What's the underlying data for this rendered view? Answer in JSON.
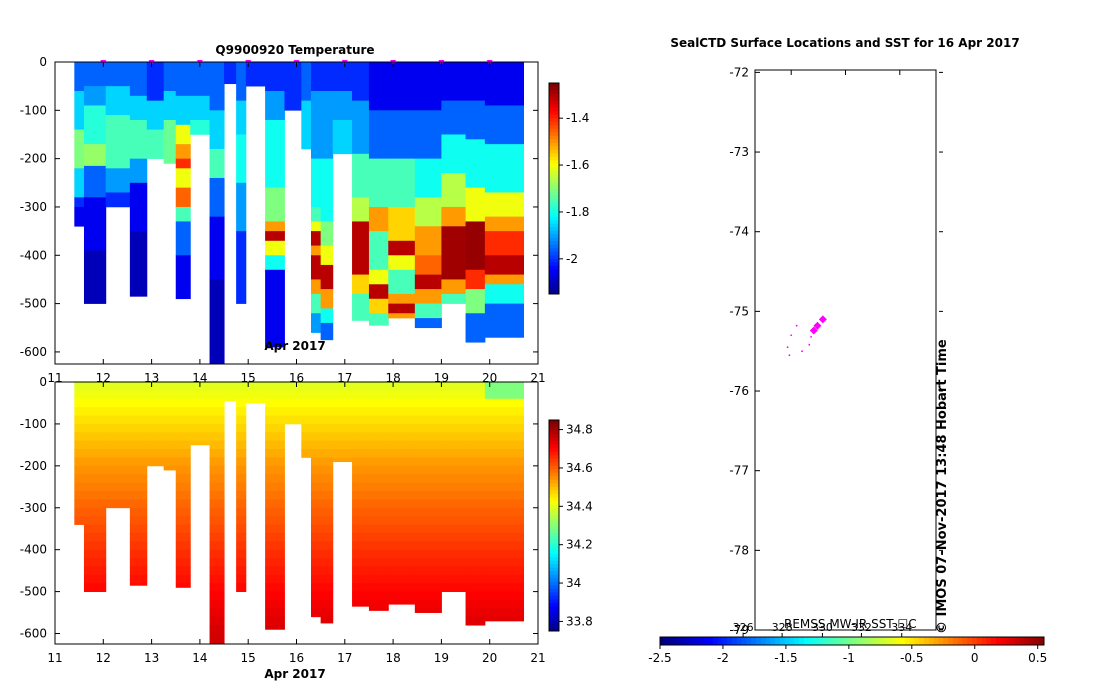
{
  "chart_data": [
    {
      "type": "heatmap",
      "title": "Q9900920  Temperature",
      "xlabel": "Apr 2017",
      "ylabel": "",
      "xlim": [
        11,
        21
      ],
      "ylim": [
        -625,
        0
      ],
      "xticks": [
        "11",
        "12",
        "13",
        "14",
        "15",
        "16",
        "17",
        "18",
        "19",
        "20",
        "21"
      ],
      "yticks": [
        "0",
        "-100",
        "-200",
        "-300",
        "-400",
        "-500",
        "-600"
      ],
      "colorbar": {
        "min": -2.15,
        "max": -1.25,
        "ticks": [
          "-1.4",
          "-1.6",
          "-1.8",
          "-2"
        ],
        "tick_values": [
          -1.4,
          -1.6,
          -1.8,
          -2.0
        ]
      },
      "markers_x": [
        12.0,
        13.0,
        14.0,
        15.0,
        16.0,
        17.0,
        18.0,
        19.0,
        20.0
      ],
      "profiles": [
        {
          "x0": 11.4,
          "x1": 11.6,
          "bottom": -340,
          "layers": [
            [
              0,
              -1.95
            ],
            [
              -60,
              -1.85
            ],
            [
              -140,
              -1.7
            ],
            [
              -220,
              -1.85
            ],
            [
              -280,
              -2.0
            ],
            [
              -300,
              -2.05
            ]
          ]
        },
        {
          "x0": 11.6,
          "x1": 12.05,
          "bottom": -500,
          "layers": [
            [
              0,
              -1.95
            ],
            [
              -50,
              -1.9
            ],
            [
              -90,
              -1.78
            ],
            [
              -170,
              -1.68
            ],
            [
              -215,
              -1.95
            ],
            [
              -280,
              -2.05
            ],
            [
              -390,
              -2.1
            ]
          ]
        },
        {
          "x0": 12.05,
          "x1": 12.55,
          "bottom": -300,
          "layers": [
            [
              0,
              -1.95
            ],
            [
              -50,
              -1.85
            ],
            [
              -110,
              -1.75
            ],
            [
              -220,
              -1.9
            ],
            [
              -270,
              -2.0
            ]
          ]
        },
        {
          "x0": 12.55,
          "x1": 12.9,
          "bottom": -485,
          "layers": [
            [
              0,
              -1.95
            ],
            [
              -70,
              -1.85
            ],
            [
              -120,
              -1.75
            ],
            [
              -200,
              -1.9
            ],
            [
              -250,
              -2.05
            ],
            [
              -350,
              -2.1
            ]
          ]
        },
        {
          "x0": 12.9,
          "x1": 13.25,
          "bottom": -200,
          "layers": [
            [
              0,
              -2.0
            ],
            [
              -80,
              -1.85
            ],
            [
              -140,
              -1.75
            ]
          ]
        },
        {
          "x0": 13.25,
          "x1": 13.5,
          "bottom": -210,
          "layers": [
            [
              0,
              -1.95
            ],
            [
              -60,
              -1.85
            ],
            [
              -120,
              -1.72
            ]
          ]
        },
        {
          "x0": 13.5,
          "x1": 13.8,
          "bottom": -490,
          "layers": [
            [
              0,
              -1.95
            ],
            [
              -70,
              -1.85
            ],
            [
              -130,
              -1.6
            ],
            [
              -170,
              -1.5
            ],
            [
              -200,
              -1.4
            ],
            [
              -220,
              -1.6
            ],
            [
              -260,
              -1.45
            ],
            [
              -300,
              -1.75
            ],
            [
              -330,
              -1.95
            ],
            [
              -400,
              -2.05
            ]
          ]
        },
        {
          "x0": 13.8,
          "x1": 14.2,
          "bottom": -150,
          "layers": [
            [
              0,
              -1.95
            ],
            [
              -70,
              -1.85
            ],
            [
              -120,
              -1.78
            ]
          ]
        },
        {
          "x0": 14.2,
          "x1": 14.5,
          "bottom": -630,
          "layers": [
            [
              0,
              -1.95
            ],
            [
              -100,
              -1.85
            ],
            [
              -180,
              -1.75
            ],
            [
              -240,
              -1.95
            ],
            [
              -320,
              -2.05
            ],
            [
              -450,
              -2.1
            ]
          ]
        },
        {
          "x0": 14.5,
          "x1": 14.75,
          "bottom": -45,
          "layers": [
            [
              0,
              -2.0
            ]
          ]
        },
        {
          "x0": 14.75,
          "x1": 14.95,
          "bottom": -500,
          "layers": [
            [
              0,
              -1.95
            ],
            [
              -80,
              -1.85
            ],
            [
              -150,
              -1.8
            ],
            [
              -250,
              -1.9
            ],
            [
              -350,
              -2.0
            ]
          ]
        },
        {
          "x0": 14.95,
          "x1": 15.35,
          "bottom": -50,
          "layers": [
            [
              0,
              -2.0
            ]
          ]
        },
        {
          "x0": 15.35,
          "x1": 15.75,
          "bottom": -590,
          "layers": [
            [
              0,
              -2.0
            ],
            [
              -60,
              -1.9
            ],
            [
              -120,
              -1.8
            ],
            [
              -260,
              -1.7
            ],
            [
              -330,
              -1.5
            ],
            [
              -350,
              -1.3
            ],
            [
              -370,
              -1.6
            ],
            [
              -400,
              -1.8
            ],
            [
              -430,
              -2.05
            ]
          ]
        },
        {
          "x0": 15.75,
          "x1": 16.1,
          "bottom": -100,
          "layers": [
            [
              0,
              -2.0
            ]
          ]
        },
        {
          "x0": 16.1,
          "x1": 16.3,
          "bottom": -180,
          "layers": [
            [
              0,
              -1.95
            ],
            [
              -80,
              -1.85
            ]
          ]
        },
        {
          "x0": 16.3,
          "x1": 16.5,
          "bottom": -560,
          "layers": [
            [
              0,
              -2.0
            ],
            [
              -60,
              -1.9
            ],
            [
              -200,
              -1.8
            ],
            [
              -300,
              -1.75
            ],
            [
              -330,
              -1.6
            ],
            [
              -350,
              -1.3
            ],
            [
              -380,
              -1.5
            ],
            [
              -400,
              -1.3
            ],
            [
              -450,
              -1.5
            ],
            [
              -480,
              -1.75
            ],
            [
              -520,
              -1.9
            ]
          ]
        },
        {
          "x0": 16.5,
          "x1": 16.75,
          "bottom": -575,
          "layers": [
            [
              0,
              -2.0
            ],
            [
              -60,
              -1.9
            ],
            [
              -200,
              -1.8
            ],
            [
              -330,
              -1.7
            ],
            [
              -380,
              -1.6
            ],
            [
              -420,
              -1.3
            ],
            [
              -470,
              -1.5
            ],
            [
              -510,
              -1.8
            ],
            [
              -540,
              -1.95
            ]
          ]
        },
        {
          "x0": 16.75,
          "x1": 17.15,
          "bottom": -190,
          "layers": [
            [
              0,
              -2.0
            ],
            [
              -60,
              -1.9
            ],
            [
              -120,
              -1.85
            ]
          ]
        },
        {
          "x0": 17.15,
          "x1": 17.5,
          "bottom": -535,
          "layers": [
            [
              0,
              -2.0
            ],
            [
              -80,
              -1.9
            ],
            [
              -190,
              -1.75
            ],
            [
              -280,
              -1.65
            ],
            [
              -330,
              -1.3
            ],
            [
              -440,
              -1.55
            ],
            [
              -480,
              -1.75
            ]
          ]
        },
        {
          "x0": 17.5,
          "x1": 17.9,
          "bottom": -545,
          "layers": [
            [
              0,
              -2.05
            ],
            [
              -100,
              -1.95
            ],
            [
              -200,
              -1.75
            ],
            [
              -300,
              -1.5
            ],
            [
              -350,
              -1.75
            ],
            [
              -430,
              -1.6
            ],
            [
              -460,
              -1.3
            ],
            [
              -490,
              -1.55
            ],
            [
              -520,
              -1.75
            ]
          ]
        },
        {
          "x0": 17.9,
          "x1": 18.45,
          "bottom": -530,
          "layers": [
            [
              0,
              -2.05
            ],
            [
              -100,
              -1.95
            ],
            [
              -200,
              -1.75
            ],
            [
              -300,
              -1.55
            ],
            [
              -370,
              -1.3
            ],
            [
              -400,
              -1.6
            ],
            [
              -430,
              -1.75
            ],
            [
              -480,
              -1.5
            ],
            [
              -500,
              -1.3
            ],
            [
              -520,
              -1.5
            ]
          ]
        },
        {
          "x0": 18.45,
          "x1": 19.0,
          "bottom": -550,
          "layers": [
            [
              0,
              -2.05
            ],
            [
              -100,
              -1.95
            ],
            [
              -200,
              -1.8
            ],
            [
              -280,
              -1.65
            ],
            [
              -340,
              -1.5
            ],
            [
              -400,
              -1.45
            ],
            [
              -440,
              -1.3
            ],
            [
              -470,
              -1.5
            ],
            [
              -500,
              -1.75
            ],
            [
              -530,
              -1.95
            ]
          ]
        },
        {
          "x0": 19.0,
          "x1": 19.5,
          "bottom": -500,
          "layers": [
            [
              0,
              -2.05
            ],
            [
              -80,
              -1.95
            ],
            [
              -150,
              -1.8
            ],
            [
              -230,
              -1.65
            ],
            [
              -300,
              -1.5
            ],
            [
              -340,
              -1.28
            ],
            [
              -450,
              -1.5
            ],
            [
              -480,
              -1.75
            ]
          ]
        },
        {
          "x0": 19.5,
          "x1": 19.9,
          "bottom": -580,
          "layers": [
            [
              0,
              -2.05
            ],
            [
              -80,
              -1.95
            ],
            [
              -160,
              -1.8
            ],
            [
              -260,
              -1.6
            ],
            [
              -330,
              -1.27
            ],
            [
              -430,
              -1.4
            ],
            [
              -470,
              -1.7
            ],
            [
              -520,
              -1.95
            ]
          ]
        },
        {
          "x0": 19.9,
          "x1": 20.7,
          "bottom": -570,
          "layers": [
            [
              0,
              -2.05
            ],
            [
              -90,
              -1.95
            ],
            [
              -170,
              -1.8
            ],
            [
              -270,
              -1.6
            ],
            [
              -320,
              -1.5
            ],
            [
              -350,
              -1.4
            ],
            [
              -400,
              -1.3
            ],
            [
              -440,
              -1.5
            ],
            [
              -460,
              -1.8
            ],
            [
              -500,
              -1.95
            ]
          ]
        }
      ]
    },
    {
      "type": "heatmap",
      "title": "",
      "xlabel": "Apr 2017",
      "ylabel": "",
      "xlim": [
        11,
        21
      ],
      "ylim": [
        -625,
        0
      ],
      "xticks": [
        "11",
        "12",
        "13",
        "14",
        "15",
        "16",
        "17",
        "18",
        "19",
        "20",
        "21"
      ],
      "yticks": [
        "0",
        "-100",
        "-200",
        "-300",
        "-400",
        "-500",
        "-600"
      ],
      "colorbar": {
        "min": 33.75,
        "max": 34.85,
        "ticks": [
          "34.8",
          "34.6",
          "34.4",
          "34.2",
          "34",
          "33.8"
        ],
        "tick_values": [
          34.8,
          34.6,
          34.4,
          34.2,
          34.0,
          33.8
        ]
      },
      "bottom_gradient": [
        [
          0,
          34.4
        ],
        [
          -200,
          34.55
        ],
        [
          -400,
          34.66
        ],
        [
          -600,
          34.76
        ]
      ],
      "x_ranges": [
        [
          11.4,
          11.6
        ],
        [
          11.6,
          12.05
        ],
        [
          12.05,
          12.55
        ],
        [
          12.55,
          12.9
        ],
        [
          12.9,
          13.25
        ],
        [
          13.25,
          13.5
        ],
        [
          13.5,
          13.8
        ],
        [
          13.8,
          14.2
        ],
        [
          14.2,
          14.5
        ],
        [
          14.5,
          14.75
        ],
        [
          14.75,
          14.95
        ],
        [
          14.95,
          15.35
        ],
        [
          15.35,
          15.75
        ],
        [
          15.75,
          16.1
        ],
        [
          16.1,
          16.3
        ],
        [
          16.3,
          16.5
        ],
        [
          16.5,
          16.75
        ],
        [
          16.75,
          17.15
        ],
        [
          17.15,
          17.5
        ],
        [
          17.5,
          17.9
        ],
        [
          17.9,
          18.45
        ],
        [
          18.45,
          19.0
        ],
        [
          19.0,
          19.5
        ],
        [
          19.5,
          19.9
        ],
        [
          19.9,
          20.7
        ]
      ],
      "bottoms": [
        -340,
        -500,
        -300,
        -485,
        -200,
        -210,
        -490,
        -150,
        -630,
        -45,
        -500,
        -50,
        -590,
        -100,
        -180,
        -560,
        -575,
        -190,
        -535,
        -545,
        -530,
        -550,
        -500,
        -580,
        -570
      ],
      "top_layers": [
        [
          0,
          34.3
        ],
        [
          -30,
          34.38
        ]
      ]
    },
    {
      "type": "scatter",
      "title": "SealCTD Surface Locations and SST for 16 Apr 2017",
      "ylim": [
        -79,
        -71.97
      ],
      "yticks": [
        "-72",
        "-73",
        "-74",
        "-75",
        "-76",
        "-77",
        "-78",
        "-79"
      ],
      "tick_values": [
        -72,
        -73,
        -74,
        -75,
        -76,
        -77,
        -78,
        -79
      ],
      "points": [
        {
          "x": 0.375,
          "y": -75.1,
          "size": "large"
        },
        {
          "x": 0.345,
          "y": -75.18,
          "size": "large"
        },
        {
          "x": 0.325,
          "y": -75.24,
          "size": "large"
        },
        {
          "x": 0.31,
          "y": -75.32,
          "size": "small"
        },
        {
          "x": 0.3,
          "y": -75.42,
          "size": "small"
        },
        {
          "x": 0.23,
          "y": -75.18,
          "size": "small"
        },
        {
          "x": 0.2,
          "y": -75.3,
          "size": "small"
        },
        {
          "x": 0.18,
          "y": -75.45,
          "size": "small"
        },
        {
          "x": 0.19,
          "y": -75.55,
          "size": "small"
        },
        {
          "x": 0.26,
          "y": -75.5,
          "size": "small"
        }
      ],
      "footer_label": "REMSS MW-IR SST ☐C",
      "credit": "©  IMOS 07-Nov-2017 13:48 Hobart Time",
      "colorbar": {
        "min": -2.5,
        "max": 0.55,
        "ticks": [
          "-2.5",
          "-2",
          "-1.5",
          "-1",
          "-0.5",
          "0",
          "0.5"
        ],
        "tick_values": [
          -2.5,
          -2.0,
          -1.5,
          -1.0,
          -0.5,
          0.0,
          0.5
        ],
        "inner_ticks": [
          "326",
          "328",
          "330",
          "332",
          "334"
        ],
        "inner_tick_values": [
          -1.84,
          -1.53,
          -1.21,
          -0.9,
          -0.58
        ]
      }
    }
  ],
  "colors": {
    "marker": "#ff00ff",
    "axis": "#000000",
    "missing": "#ffffff",
    "colormap": [
      "#00007f",
      "#0000ff",
      "#007fff",
      "#00ffff",
      "#7fff7f",
      "#ffff00",
      "#ff7f00",
      "#ff0000",
      "#7f0000"
    ]
  }
}
